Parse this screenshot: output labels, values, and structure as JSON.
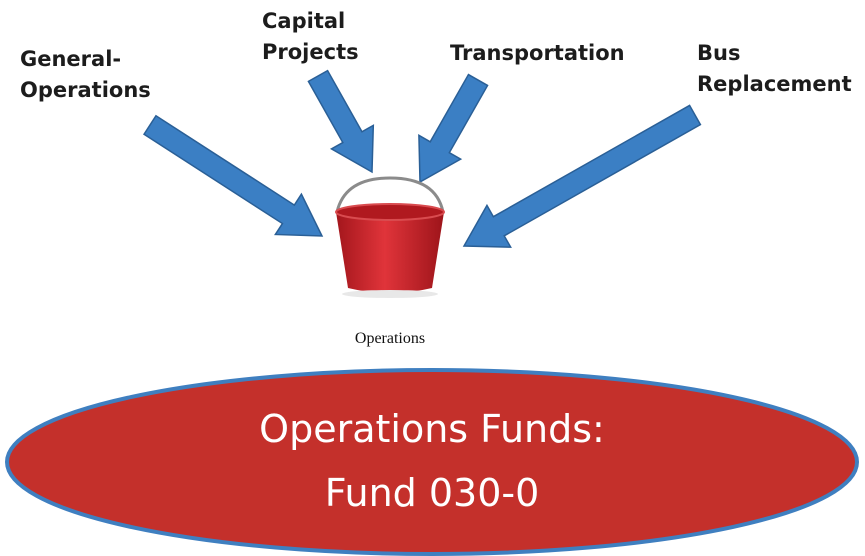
{
  "sources": [
    {
      "lines": [
        "General-",
        "Operations"
      ]
    },
    {
      "lines": [
        "Capital",
        "Projects"
      ]
    },
    {
      "lines": [
        "Transportation"
      ]
    },
    {
      "lines": [
        "Bus",
        "Replacement"
      ]
    }
  ],
  "bucket_label": "Operations",
  "fund": {
    "lines": [
      "Operations Funds:",
      "Fund 030-0"
    ]
  }
}
